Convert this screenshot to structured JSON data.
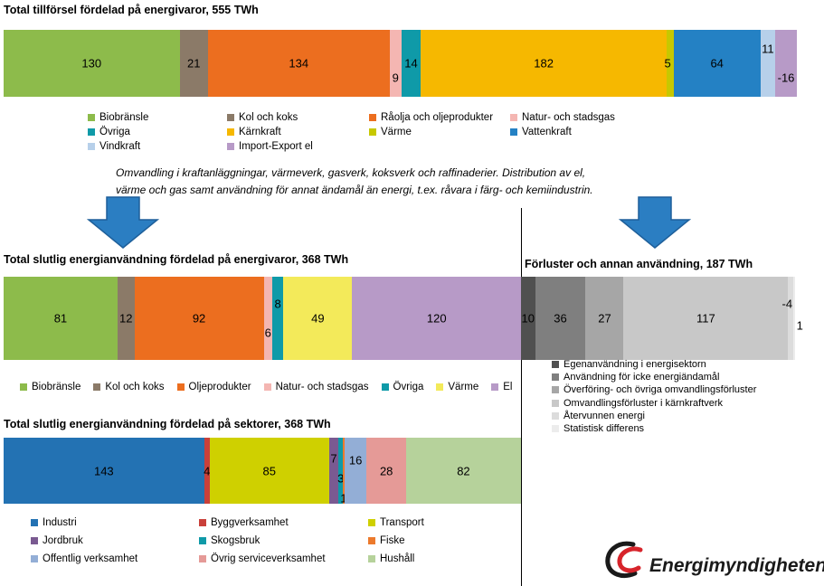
{
  "chart_data": [
    {
      "type": "bar",
      "orientation": "horizontal-stacked",
      "title": "Total tillförsel fördelad på energivaror, 555 TWh",
      "series": [
        {
          "name": "Biobränsle",
          "value": 130,
          "label": "130",
          "color": "#8dbb4b"
        },
        {
          "name": "Kol och koks",
          "value": 21,
          "label": "21",
          "color": "#8b7a68"
        },
        {
          "name": "Råolja och oljeprodukter",
          "value": 134,
          "label": "134",
          "color": "#ec6e1f"
        },
        {
          "name": "Natur- och stadsgas",
          "value": 9,
          "label": "9",
          "color": "#f4b6b2"
        },
        {
          "name": "Övriga",
          "value": 14,
          "label": "14",
          "color": "#0f9aa8"
        },
        {
          "name": "Kärnkraft",
          "value": 182,
          "label": "182",
          "color": "#f6b800"
        },
        {
          "name": "Värme",
          "value": 5,
          "label": "5",
          "color": "#c7c800"
        },
        {
          "name": "Vattenkraft",
          "value": 64,
          "label": "64",
          "color": "#2481c4"
        },
        {
          "name": "Vindkraft",
          "value": 11,
          "label": "11",
          "color": "#b7d0ea"
        },
        {
          "name": "Import-Export el",
          "value": -16,
          "label": "-16",
          "color": "#b79ac7"
        }
      ]
    },
    {
      "type": "bar",
      "orientation": "horizontal-stacked",
      "title": "Total slutlig energianvändning fördelad på energivaror, 368 TWh",
      "series": [
        {
          "name": "Biobränsle",
          "value": 81,
          "label": "81",
          "color": "#8dbb4b"
        },
        {
          "name": "Kol och koks",
          "value": 12,
          "label": "12",
          "color": "#8b7a68"
        },
        {
          "name": "Oljeprodukter",
          "value": 92,
          "label": "92",
          "color": "#ec6e1f"
        },
        {
          "name": "Natur- och stadsgas",
          "value": 6,
          "label": "6",
          "color": "#f4b6b2"
        },
        {
          "name": "Övriga",
          "value": 8,
          "label": "8",
          "color": "#0f9aa8"
        },
        {
          "name": "Värme",
          "value": 49,
          "label": "49",
          "color": "#f3ea5a"
        },
        {
          "name": "El",
          "value": 120,
          "label": "120",
          "color": "#b79ac7"
        }
      ]
    },
    {
      "type": "bar",
      "orientation": "horizontal-stacked",
      "title": "Förluster och annan användning, 187 TWh",
      "series": [
        {
          "name": "Egenanvändning i energisektorn",
          "value": 10,
          "label": "10",
          "color": "#505050"
        },
        {
          "name": "Användning för icke energiändamål",
          "value": 36,
          "label": "36",
          "color": "#7f7f7f"
        },
        {
          "name": "Överföring- och övriga omvandlingsförluster",
          "value": 27,
          "label": "27",
          "color": "#a6a6a6"
        },
        {
          "name": "Omvandlingsförluster i kärnkraftverk",
          "value": 117,
          "label": "117",
          "color": "#c8c8c8"
        },
        {
          "name": "Återvunnen energi",
          "value": -4,
          "label": "-4",
          "color": "#dcdcdc"
        },
        {
          "name": "Statistisk differens",
          "value": 1,
          "label": "1",
          "color": "#ececec"
        }
      ]
    },
    {
      "type": "bar",
      "orientation": "horizontal-stacked",
      "title": "Total slutlig energianvändning fördelad på sektorer, 368 TWh",
      "series": [
        {
          "name": "Industri",
          "value": 143,
          "label": "143",
          "color": "#2372b3"
        },
        {
          "name": "Byggverksamhet",
          "value": 4,
          "label": "4",
          "color": "#c9403a"
        },
        {
          "name": "Transport",
          "value": 85,
          "label": "85",
          "color": "#cfd000"
        },
        {
          "name": "Jordbruk",
          "value": 7,
          "label": "7",
          "color": "#7a5a91"
        },
        {
          "name": "Skogsbruk",
          "value": 3,
          "label": "3",
          "color": "#0f9aa8"
        },
        {
          "name": "Fiske",
          "value": 1,
          "label": "1",
          "color": "#ec7a2c"
        },
        {
          "name": "Offentlig verksamhet",
          "value": 16,
          "label": "16",
          "color": "#93aed6"
        },
        {
          "name": "Övrig serviceverksamhet",
          "value": 28,
          "label": "28",
          "color": "#e59a97"
        },
        {
          "name": "Hushåll",
          "value": 82,
          "label": "82",
          "color": "#b6d29b"
        }
      ]
    }
  ],
  "note": {
    "line1": "Omvandling i kraftanläggningar, värmeverk, gasverk, koksverk och raffinaderier. Distribution av el,",
    "line2": "värme och gas samt användning för annat ändamål än energi, t.ex. råvara i färg- och kemiindustrin."
  },
  "logo": {
    "text": "Energimyndigheten",
    "color": "#d7242b"
  },
  "colors": {
    "arrow": "#2b7ec2",
    "arrow_edge": "#1e5f9a"
  }
}
